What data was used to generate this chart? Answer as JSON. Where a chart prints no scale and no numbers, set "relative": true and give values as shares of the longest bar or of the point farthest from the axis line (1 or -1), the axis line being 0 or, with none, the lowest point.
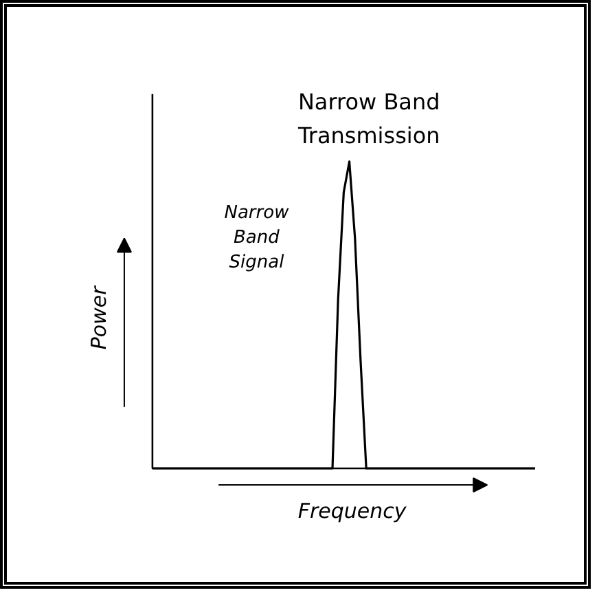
{
  "chart_data": {
    "type": "line",
    "relative": true,
    "title": "Narrow Band Transmission",
    "xlabel": "Frequency",
    "ylabel": "Power",
    "annotations": [
      "Narrow Band Signal"
    ],
    "categories": [
      null,
      null,
      null,
      null,
      null,
      null,
      null,
      null,
      null,
      null,
      null,
      null,
      null,
      null,
      null,
      null,
      null,
      null,
      null,
      null,
      null,
      null,
      null,
      null,
      null,
      null,
      null,
      null,
      null,
      null,
      null,
      null,
      null,
      null,
      null,
      null,
      null,
      null,
      null,
      null,
      null,
      null,
      null,
      null,
      null,
      null,
      null,
      null,
      null,
      null,
      null,
      null,
      null,
      null,
      null,
      null,
      null,
      null,
      null,
      null,
      null,
      null,
      null,
      null,
      null,
      null,
      null,
      null,
      null
    ],
    "series": [
      {
        "color": "#000000",
        "values": [
          0,
          0,
          0,
          0,
          0,
          0,
          0,
          0,
          0,
          0,
          0,
          0,
          0,
          0,
          0,
          0,
          0,
          0,
          0,
          0,
          0,
          0,
          0,
          0,
          0,
          0,
          0,
          0,
          0,
          0,
          0,
          0,
          0,
          0.55,
          0.9,
          1,
          0.75,
          0.35,
          0,
          0,
          0,
          0,
          0,
          0,
          0,
          0,
          0,
          0,
          0,
          0,
          0,
          0,
          0,
          0,
          0,
          0,
          0,
          0,
          0,
          0,
          0,
          0,
          0,
          0,
          0,
          0,
          0,
          0,
          0
        ]
      }
    ]
  }
}
